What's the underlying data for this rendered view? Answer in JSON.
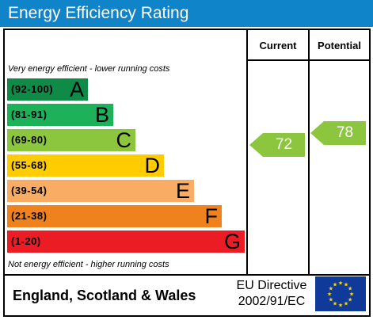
{
  "header": {
    "title": "Energy Efficiency Rating"
  },
  "columns": {
    "current": "Current",
    "potential": "Potential"
  },
  "notes": {
    "top": "Very energy efficient - lower running costs",
    "bottom": "Not energy efficient - higher running costs"
  },
  "bands": [
    {
      "range": "(92-100)",
      "letter": "A",
      "color": "#0f8a47"
    },
    {
      "range": "(81-91)",
      "letter": "B",
      "color": "#1db15a"
    },
    {
      "range": "(69-80)",
      "letter": "C",
      "color": "#8cc63f"
    },
    {
      "range": "(55-68)",
      "letter": "D",
      "color": "#ffcc00"
    },
    {
      "range": "(39-54)",
      "letter": "E",
      "color": "#f9ac64"
    },
    {
      "range": "(21-38)",
      "letter": "F",
      "color": "#f0821e"
    },
    {
      "range": "(1-20)",
      "letter": "G",
      "color": "#ec1c24"
    }
  ],
  "ratings": {
    "current": {
      "value": "72",
      "color": "#8cc63f"
    },
    "potential": {
      "value": "78",
      "color": "#8cc63f"
    }
  },
  "footer": {
    "country": "England, Scotland & Wales",
    "directive_line1": "EU Directive",
    "directive_line2": "2002/91/EC"
  }
}
